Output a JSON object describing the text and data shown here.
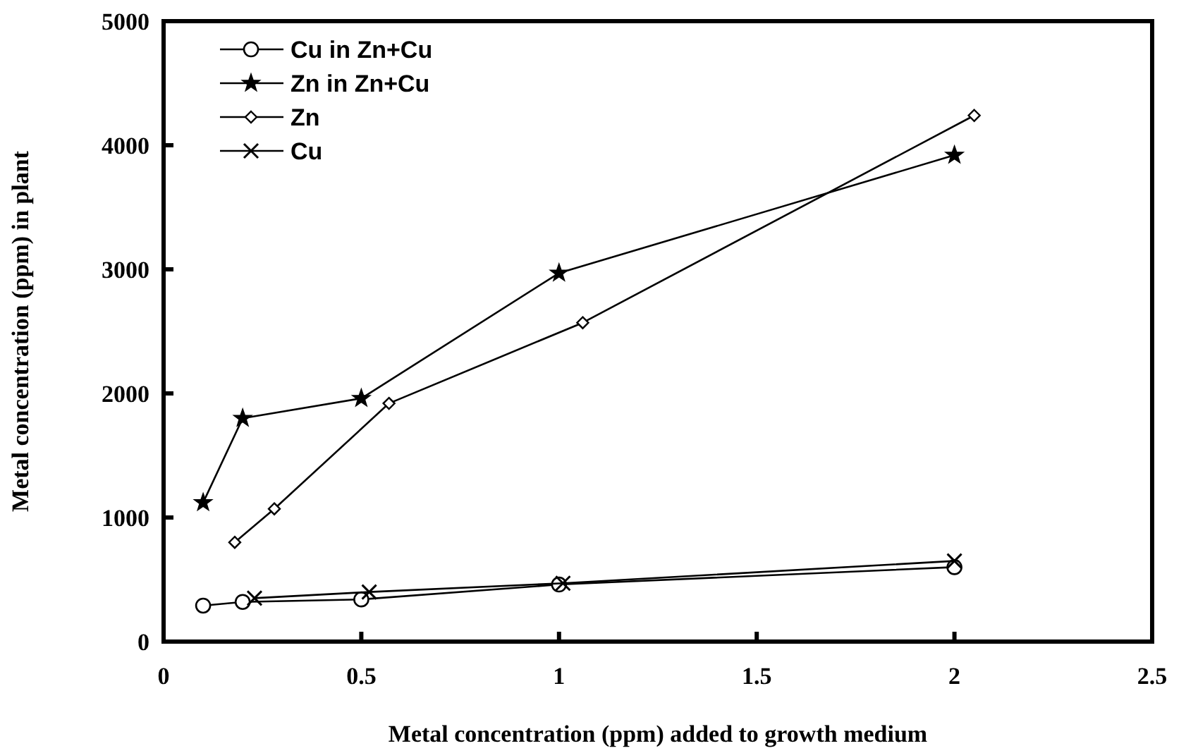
{
  "chart_data": {
    "type": "line",
    "xlabel": "Metal concentration (ppm) added to growth medium",
    "ylabel": "Metal concentration (ppm) in plant",
    "xlim": [
      0,
      2.5
    ],
    "ylim": [
      0,
      5000
    ],
    "xticks": [
      0,
      0.5,
      1,
      1.5,
      2,
      2.5
    ],
    "yticks": [
      0,
      1000,
      2000,
      3000,
      4000,
      5000
    ],
    "legend": "top left",
    "grid": false,
    "series": [
      {
        "name": "Cu in Zn+Cu",
        "color": "#000000",
        "marker": "circle",
        "x": [
          0.1,
          0.2,
          0.5,
          1.0,
          2.0
        ],
        "values": [
          290,
          320,
          340,
          460,
          600
        ]
      },
      {
        "name": "Zn in Zn+Cu",
        "color": "#000000",
        "marker": "star",
        "x": [
          0.1,
          0.2,
          0.5,
          1.0,
          2.0
        ],
        "values": [
          1120,
          1800,
          1960,
          2970,
          3920
        ]
      },
      {
        "name": "Zn",
        "color": "#000000",
        "marker": "diamond",
        "x": [
          0.18,
          0.28,
          0.57,
          1.06,
          2.05
        ],
        "values": [
          800,
          1070,
          1920,
          2570,
          4240
        ]
      },
      {
        "name": "Cu",
        "color": "#000000",
        "marker": "cross",
        "x": [
          0.23,
          0.52,
          1.01,
          2.0
        ],
        "values": [
          350,
          400,
          470,
          650
        ]
      }
    ]
  }
}
